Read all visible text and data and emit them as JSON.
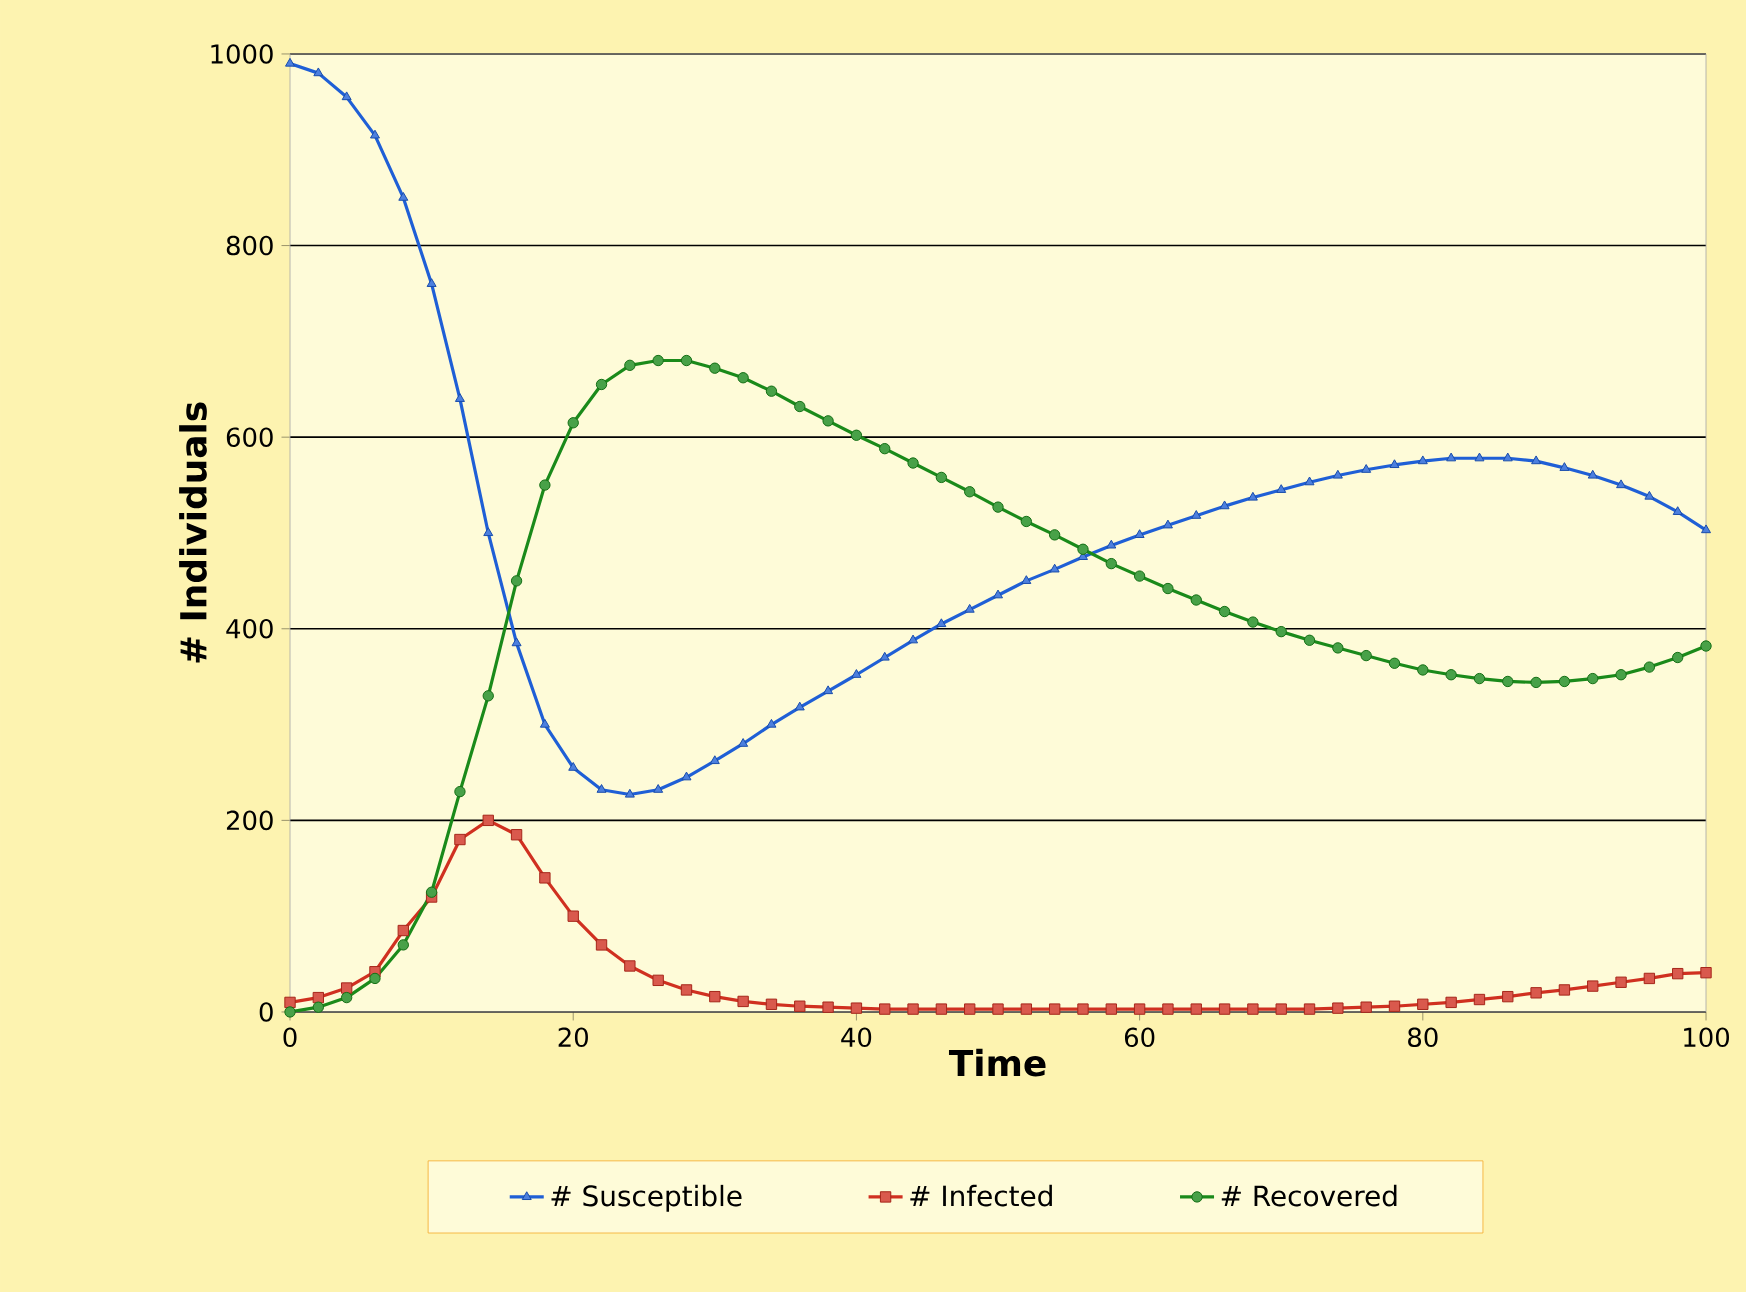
{
  "chart_data": {
    "type": "line",
    "xlabel": "Time",
    "ylabel": "# Individuals",
    "x": [
      0,
      2,
      4,
      6,
      8,
      10,
      12,
      14,
      16,
      18,
      20,
      22,
      24,
      26,
      28,
      30,
      32,
      34,
      36,
      38,
      40,
      42,
      44,
      46,
      48,
      50,
      52,
      54,
      56,
      58,
      60,
      62,
      64,
      66,
      68,
      70,
      72,
      74,
      76,
      78,
      80,
      82,
      84,
      86,
      88,
      90,
      92,
      94,
      96,
      98,
      100
    ],
    "xlim": [
      0,
      100
    ],
    "xticks": [
      0,
      20,
      40,
      60,
      80,
      100
    ],
    "ylim": [
      0,
      1000
    ],
    "yticks": [
      0,
      200,
      400,
      600,
      800,
      1000
    ],
    "grid": "y",
    "legend": "bottom",
    "series": [
      {
        "name": "# Susceptible",
        "color": "#1f5fd6",
        "marker": "triangle",
        "values": [
          990,
          980,
          955,
          915,
          850,
          760,
          640,
          500,
          385,
          300,
          255,
          232,
          227,
          232,
          245,
          262,
          280,
          300,
          318,
          335,
          352,
          370,
          388,
          405,
          420,
          435,
          450,
          462,
          475,
          487,
          498,
          508,
          518,
          528,
          537,
          545,
          553,
          560,
          566,
          571,
          575,
          578,
          578,
          578,
          575,
          568,
          560,
          550,
          538,
          522,
          503
        ]
      },
      {
        "name": "# Infected",
        "color": "#d03020",
        "marker": "square",
        "values": [
          10,
          15,
          25,
          42,
          85,
          120,
          180,
          200,
          185,
          140,
          100,
          70,
          48,
          33,
          23,
          16,
          11,
          8,
          6,
          5,
          4,
          3,
          3,
          3,
          3,
          3,
          3,
          3,
          3,
          3,
          3,
          3,
          3,
          3,
          3,
          3,
          3,
          4,
          5,
          6,
          8,
          10,
          13,
          16,
          20,
          23,
          27,
          31,
          35,
          40,
          41
        ]
      },
      {
        "name": "# Recovered",
        "color": "#1a8a1a",
        "marker": "circle",
        "values": [
          0,
          5,
          15,
          35,
          70,
          125,
          230,
          330,
          450,
          550,
          615,
          655,
          675,
          680,
          680,
          672,
          662,
          648,
          632,
          617,
          602,
          588,
          573,
          558,
          543,
          527,
          512,
          498,
          483,
          468,
          455,
          442,
          430,
          418,
          407,
          397,
          388,
          380,
          372,
          364,
          357,
          352,
          348,
          345,
          344,
          345,
          348,
          352,
          360,
          370,
          382
        ]
      }
    ]
  }
}
